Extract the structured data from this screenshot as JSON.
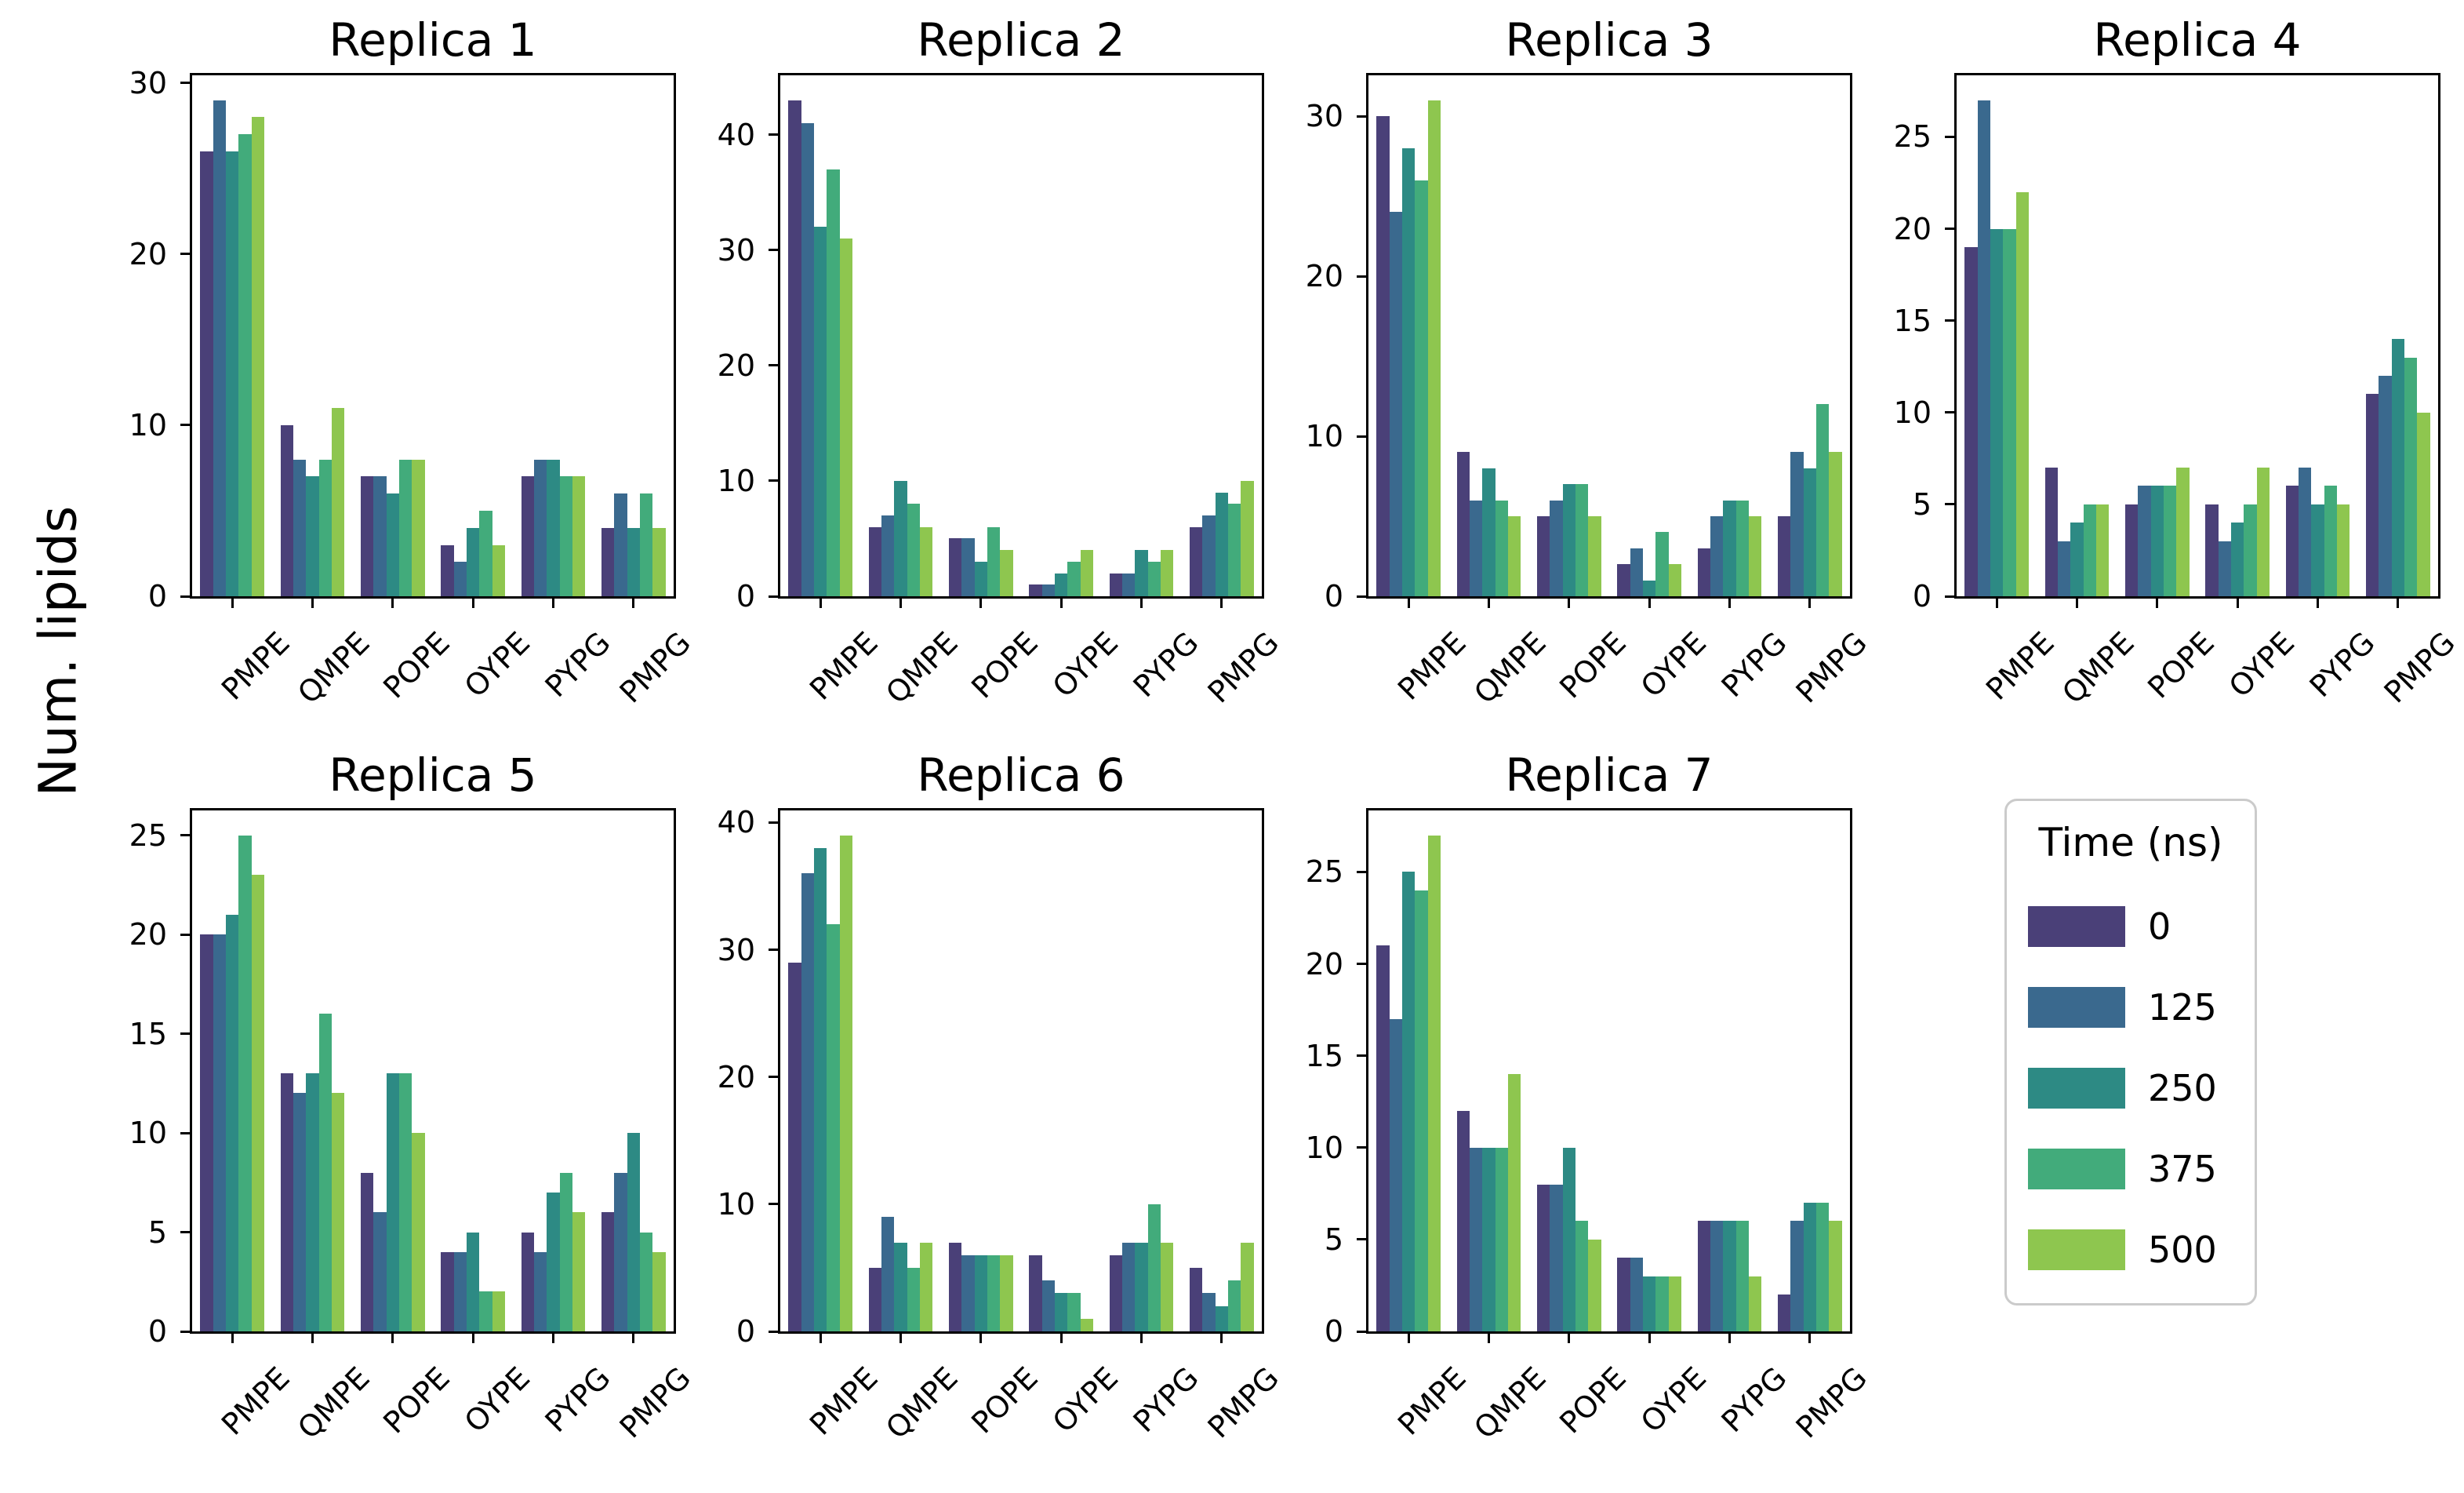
{
  "figure": {
    "ylabel": "Num. lipids"
  },
  "palette": [
    "#4a4078",
    "#3a698e",
    "#2d8a84",
    "#42ab7b",
    "#8ec64f"
  ],
  "legend": {
    "title": "Time (ns)",
    "position": "bottom-right",
    "entries": [
      {
        "label": "0",
        "color": "#4a4078"
      },
      {
        "label": "125",
        "color": "#3a698e"
      },
      {
        "label": "250",
        "color": "#2d8a84"
      },
      {
        "label": "375",
        "color": "#42ab7b"
      },
      {
        "label": "500",
        "color": "#8ec64f"
      }
    ]
  },
  "chart_data": [
    {
      "type": "bar",
      "title": "Replica 1",
      "categories": [
        "PMPE",
        "QMPE",
        "POPE",
        "OYPE",
        "PYPG",
        "PMPG"
      ],
      "yticks": [
        0,
        10,
        20,
        30
      ],
      "ylim": [
        0,
        30.45
      ],
      "series": [
        {
          "name": "0",
          "values": [
            26,
            10,
            7,
            3,
            7,
            4
          ]
        },
        {
          "name": "125",
          "values": [
            29,
            8,
            7,
            2,
            8,
            6
          ]
        },
        {
          "name": "250",
          "values": [
            26,
            7,
            6,
            4,
            8,
            4
          ]
        },
        {
          "name": "375",
          "values": [
            27,
            8,
            8,
            5,
            7,
            6
          ]
        },
        {
          "name": "500",
          "values": [
            28,
            11,
            8,
            3,
            7,
            4
          ]
        }
      ]
    },
    {
      "type": "bar",
      "title": "Replica 2",
      "categories": [
        "PMPE",
        "QMPE",
        "POPE",
        "OYPE",
        "PYPG",
        "PMPG"
      ],
      "yticks": [
        0,
        10,
        20,
        30,
        40
      ],
      "ylim": [
        0,
        45.15
      ],
      "series": [
        {
          "name": "0",
          "values": [
            43,
            6,
            5,
            1,
            2,
            6
          ]
        },
        {
          "name": "125",
          "values": [
            41,
            7,
            5,
            1,
            2,
            7
          ]
        },
        {
          "name": "250",
          "values": [
            32,
            10,
            3,
            2,
            4,
            9
          ]
        },
        {
          "name": "375",
          "values": [
            37,
            8,
            6,
            3,
            3,
            8
          ]
        },
        {
          "name": "500",
          "values": [
            31,
            6,
            4,
            4,
            4,
            10
          ]
        }
      ]
    },
    {
      "type": "bar",
      "title": "Replica 3",
      "categories": [
        "PMPE",
        "QMPE",
        "POPE",
        "OYPE",
        "PYPG",
        "PMPG"
      ],
      "yticks": [
        0,
        10,
        20,
        30
      ],
      "ylim": [
        0,
        32.55
      ],
      "series": [
        {
          "name": "0",
          "values": [
            30,
            9,
            5,
            2,
            3,
            5
          ]
        },
        {
          "name": "125",
          "values": [
            24,
            6,
            6,
            3,
            5,
            9
          ]
        },
        {
          "name": "250",
          "values": [
            28,
            8,
            7,
            1,
            6,
            8
          ]
        },
        {
          "name": "375",
          "values": [
            26,
            6,
            7,
            4,
            6,
            12
          ]
        },
        {
          "name": "500",
          "values": [
            31,
            5,
            5,
            2,
            5,
            9
          ]
        }
      ]
    },
    {
      "type": "bar",
      "title": "Replica 4",
      "categories": [
        "PMPE",
        "QMPE",
        "POPE",
        "OYPE",
        "PYPG",
        "PMPG"
      ],
      "yticks": [
        0,
        5,
        10,
        15,
        20,
        25
      ],
      "ylim": [
        0,
        28.35
      ],
      "series": [
        {
          "name": "0",
          "values": [
            19,
            7,
            5,
            5,
            6,
            11
          ]
        },
        {
          "name": "125",
          "values": [
            27,
            3,
            6,
            3,
            7,
            12
          ]
        },
        {
          "name": "250",
          "values": [
            20,
            4,
            6,
            4,
            5,
            14
          ]
        },
        {
          "name": "375",
          "values": [
            20,
            5,
            6,
            5,
            6,
            13
          ]
        },
        {
          "name": "500",
          "values": [
            22,
            5,
            7,
            7,
            5,
            10
          ]
        }
      ]
    },
    {
      "type": "bar",
      "title": "Replica 5",
      "categories": [
        "PMPE",
        "QMPE",
        "POPE",
        "OYPE",
        "PYPG",
        "PMPG"
      ],
      "yticks": [
        0,
        5,
        10,
        15,
        20,
        25
      ],
      "ylim": [
        0,
        26.25
      ],
      "series": [
        {
          "name": "0",
          "values": [
            20,
            13,
            8,
            4,
            5,
            6
          ]
        },
        {
          "name": "125",
          "values": [
            20,
            12,
            6,
            4,
            4,
            8
          ]
        },
        {
          "name": "250",
          "values": [
            21,
            13,
            13,
            5,
            7,
            10
          ]
        },
        {
          "name": "375",
          "values": [
            25,
            16,
            13,
            2,
            8,
            5
          ]
        },
        {
          "name": "500",
          "values": [
            23,
            12,
            10,
            2,
            6,
            4
          ]
        }
      ]
    },
    {
      "type": "bar",
      "title": "Replica 6",
      "categories": [
        "PMPE",
        "QMPE",
        "POPE",
        "OYPE",
        "PYPG",
        "PMPG"
      ],
      "yticks": [
        0,
        10,
        20,
        30,
        40
      ],
      "ylim": [
        0,
        40.95
      ],
      "series": [
        {
          "name": "0",
          "values": [
            29,
            5,
            7,
            6,
            6,
            5
          ]
        },
        {
          "name": "125",
          "values": [
            36,
            9,
            6,
            4,
            7,
            3
          ]
        },
        {
          "name": "250",
          "values": [
            38,
            7,
            6,
            3,
            7,
            2
          ]
        },
        {
          "name": "375",
          "values": [
            32,
            5,
            6,
            3,
            10,
            4
          ]
        },
        {
          "name": "500",
          "values": [
            39,
            7,
            6,
            1,
            7,
            7
          ]
        }
      ]
    },
    {
      "type": "bar",
      "title": "Replica 7",
      "categories": [
        "PMPE",
        "QMPE",
        "POPE",
        "OYPE",
        "PYPG",
        "PMPG"
      ],
      "yticks": [
        0,
        5,
        10,
        15,
        20,
        25
      ],
      "ylim": [
        0,
        28.35
      ],
      "series": [
        {
          "name": "0",
          "values": [
            21,
            12,
            8,
            4,
            6,
            2
          ]
        },
        {
          "name": "125",
          "values": [
            17,
            10,
            8,
            4,
            6,
            6
          ]
        },
        {
          "name": "250",
          "values": [
            25,
            10,
            10,
            3,
            6,
            7
          ]
        },
        {
          "name": "375",
          "values": [
            24,
            10,
            6,
            3,
            6,
            7
          ]
        },
        {
          "name": "500",
          "values": [
            27,
            14,
            5,
            3,
            3,
            6
          ]
        }
      ]
    }
  ]
}
